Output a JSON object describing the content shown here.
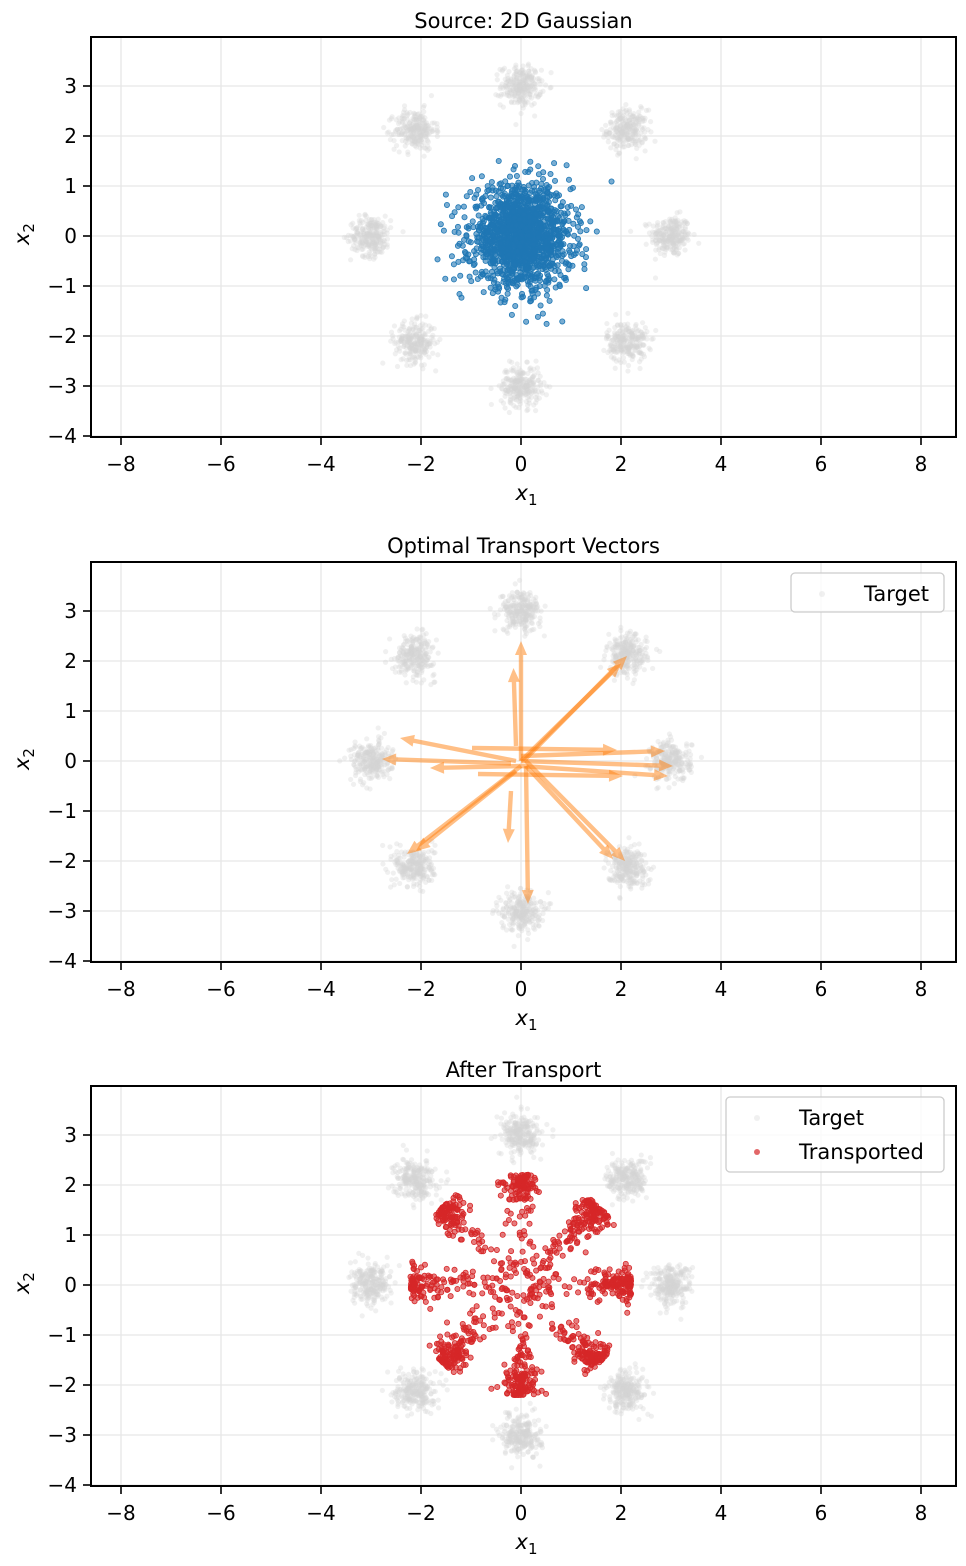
{
  "chart_data": [
    {
      "type": "scatter",
      "title": "Source: 2D Gaussian",
      "xlabel_main": "x",
      "xlabel_sub": "1",
      "ylabel_main": "x",
      "ylabel_sub": "2",
      "xlim": [
        -8.6,
        8.7
      ],
      "ylim": [
        -4.02,
        3.98
      ],
      "xticks": [
        -8,
        -6,
        -4,
        -2,
        0,
        2,
        4,
        6,
        8
      ],
      "yticks": [
        -4,
        -3,
        -2,
        -1,
        0,
        1,
        2,
        3
      ],
      "grid": true,
      "series": [
        {
          "name": "Target",
          "color": "#d3d3d3",
          "kind": "8-gaussians",
          "radius": 3,
          "std": 0.2,
          "n_per_cluster": 250,
          "show_in_legend": false
        },
        {
          "name": "Source",
          "color": "#1f77b4",
          "kind": "gaussian",
          "mean": [
            0,
            0
          ],
          "std": 0.5,
          "n": 1500,
          "show_in_legend": false
        }
      ]
    },
    {
      "type": "quiver",
      "title": "Optimal Transport Vectors",
      "xlabel_main": "x",
      "xlabel_sub": "1",
      "ylabel_main": "x",
      "ylabel_sub": "2",
      "xlim": [
        -8.6,
        8.7
      ],
      "ylim": [
        -4.02,
        3.98
      ],
      "xticks": [
        -8,
        -6,
        -4,
        -2,
        0,
        2,
        4,
        6,
        8
      ],
      "yticks": [
        -4,
        -3,
        -2,
        -1,
        0,
        1,
        2,
        3
      ],
      "grid": true,
      "legend": {
        "placement": "top-right",
        "entries": [
          "Target"
        ]
      },
      "series": [
        {
          "name": "Target",
          "color": "#d3d3d3",
          "kind": "8-gaussians",
          "radius": 3,
          "std": 0.2,
          "n_per_cluster": 250
        }
      ],
      "arrow_color": "#ff7f0e",
      "arrows": [
        {
          "from": [
            0.0,
            0.0
          ],
          "to": [
            0.0,
            2.4
          ]
        },
        {
          "from": [
            -0.1,
            0.3
          ],
          "to": [
            -0.15,
            1.86
          ]
        },
        {
          "from": [
            0.05,
            0.0
          ],
          "to": [
            2.12,
            2.1
          ]
        },
        {
          "from": [
            0.0,
            0.0
          ],
          "to": [
            2.0,
            1.95
          ]
        },
        {
          "from": [
            -0.1,
            0.0
          ],
          "to": [
            -2.42,
            0.46
          ]
        },
        {
          "from": [
            -0.2,
            -0.05
          ],
          "to": [
            -2.78,
            0.04
          ]
        },
        {
          "from": [
            0.0,
            -0.1
          ],
          "to": [
            -1.82,
            -0.14
          ]
        },
        {
          "from": [
            -0.98,
            0.26
          ],
          "to": [
            1.92,
            0.22
          ]
        },
        {
          "from": [
            0.0,
            0.1
          ],
          "to": [
            2.88,
            0.2
          ]
        },
        {
          "from": [
            0.0,
            0.0
          ],
          "to": [
            3.04,
            -0.1
          ]
        },
        {
          "from": [
            0.0,
            -0.1
          ],
          "to": [
            2.94,
            -0.3
          ]
        },
        {
          "from": [
            -0.86,
            -0.26
          ],
          "to": [
            2.04,
            -0.3
          ]
        },
        {
          "from": [
            0.0,
            -0.1
          ],
          "to": [
            -2.28,
            -1.86
          ]
        },
        {
          "from": [
            -0.1,
            -0.2
          ],
          "to": [
            -2.1,
            -1.8
          ]
        },
        {
          "from": [
            -0.2,
            -0.6
          ],
          "to": [
            -0.26,
            -1.64
          ]
        },
        {
          "from": [
            0.1,
            -0.1
          ],
          "to": [
            0.14,
            -2.86
          ]
        },
        {
          "from": [
            0.1,
            0.0
          ],
          "to": [
            2.08,
            -2.0
          ]
        },
        {
          "from": [
            0.1,
            -0.1
          ],
          "to": [
            1.84,
            -1.96
          ]
        }
      ]
    },
    {
      "type": "scatter",
      "title": "After Transport",
      "xlabel_main": "x",
      "xlabel_sub": "1",
      "ylabel_main": "x",
      "ylabel_sub": "2",
      "xlim": [
        -8.6,
        8.7
      ],
      "ylim": [
        -4.02,
        3.98
      ],
      "xticks": [
        -8,
        -6,
        -4,
        -2,
        0,
        2,
        4,
        6,
        8
      ],
      "yticks": [
        -4,
        -3,
        -2,
        -1,
        0,
        1,
        2,
        3
      ],
      "grid": true,
      "legend": {
        "placement": "top-right",
        "entries": [
          "Target",
          "Transported"
        ]
      },
      "series": [
        {
          "name": "Target",
          "color": "#d3d3d3",
          "kind": "8-gaussians",
          "radius": 3,
          "std": 0.2,
          "n_per_cluster": 250
        },
        {
          "name": "Transported",
          "color": "#d62728",
          "kind": "8-arms",
          "arm_radius_range": [
            0.2,
            2.2
          ],
          "arm_width": 0.12,
          "n": 1200
        }
      ]
    }
  ]
}
